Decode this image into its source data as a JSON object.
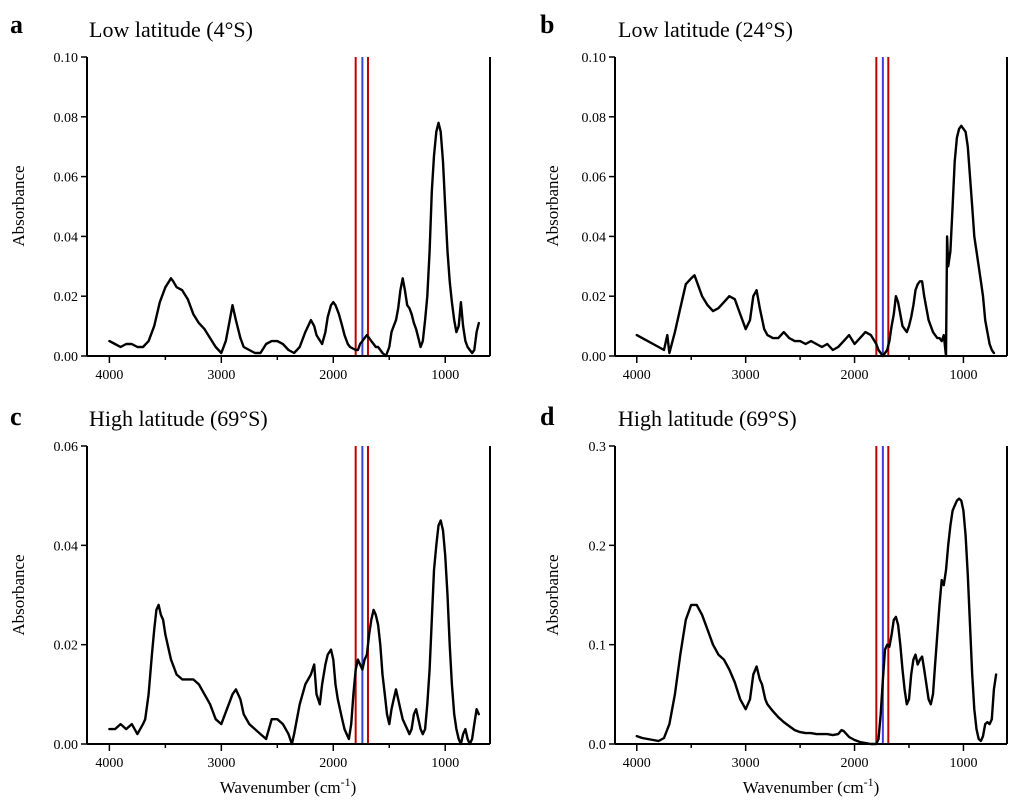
{
  "colors": {
    "red_line": "#c00000",
    "blue_line": "#3f3fd8",
    "trace": "#000000"
  },
  "chart_data": [
    {
      "type": "line",
      "panel_letter": "a",
      "title": "Low latitude (4°S)",
      "xlabel": "",
      "ylabel": "Absorbance",
      "xlim": [
        4200,
        600
      ],
      "ylim": [
        0,
        0.1
      ],
      "xticks": [
        4000,
        3000,
        2000,
        1000
      ],
      "xtick_labels": [
        "4000",
        "3000",
        "2000",
        "1000"
      ],
      "yticks": [
        0,
        0.02,
        0.04,
        0.06,
        0.08,
        0.1
      ],
      "ytick_labels": [
        "0.00",
        "0.02",
        "0.04",
        "0.06",
        "0.08",
        "0.10"
      ],
      "reference_lines": [
        1800,
        1740,
        1690
      ],
      "grid": false,
      "x": [
        4000,
        3950,
        3900,
        3850,
        3800,
        3750,
        3700,
        3650,
        3600,
        3550,
        3500,
        3450,
        3430,
        3400,
        3350,
        3300,
        3250,
        3200,
        3150,
        3100,
        3050,
        3000,
        2960,
        2930,
        2900,
        2870,
        2830,
        2800,
        2750,
        2700,
        2650,
        2600,
        2550,
        2500,
        2450,
        2400,
        2350,
        2300,
        2250,
        2200,
        2170,
        2150,
        2100,
        2070,
        2050,
        2020,
        2000,
        1980,
        1950,
        1920,
        1900,
        1870,
        1850,
        1800,
        1780,
        1760,
        1740,
        1720,
        1700,
        1680,
        1660,
        1640,
        1620,
        1600,
        1580,
        1560,
        1530,
        1500,
        1480,
        1460,
        1440,
        1420,
        1400,
        1380,
        1360,
        1340,
        1320,
        1300,
        1280,
        1260,
        1240,
        1220,
        1200,
        1180,
        1160,
        1140,
        1120,
        1100,
        1080,
        1060,
        1040,
        1020,
        1000,
        980,
        960,
        940,
        920,
        900,
        880,
        860,
        840,
        820,
        800,
        780,
        760,
        740,
        720,
        700
      ],
      "y": [
        0.005,
        0.004,
        0.003,
        0.004,
        0.004,
        0.003,
        0.003,
        0.005,
        0.01,
        0.018,
        0.023,
        0.026,
        0.025,
        0.023,
        0.022,
        0.019,
        0.014,
        0.011,
        0.009,
        0.006,
        0.003,
        0.001,
        0.005,
        0.011,
        0.017,
        0.012,
        0.006,
        0.003,
        0.002,
        0.001,
        0.001,
        0.004,
        0.005,
        0.005,
        0.004,
        0.002,
        0.001,
        0.003,
        0.008,
        0.012,
        0.01,
        0.007,
        0.004,
        0.008,
        0.013,
        0.017,
        0.018,
        0.017,
        0.014,
        0.01,
        0.007,
        0.004,
        0.003,
        0.002,
        0.002,
        0.004,
        0.005,
        0.006,
        0.007,
        0.006,
        0.005,
        0.004,
        0.003,
        0.003,
        0.002,
        0.001,
        0.0,
        0.003,
        0.008,
        0.01,
        0.012,
        0.016,
        0.022,
        0.026,
        0.022,
        0.017,
        0.016,
        0.014,
        0.011,
        0.009,
        0.006,
        0.003,
        0.005,
        0.012,
        0.02,
        0.035,
        0.055,
        0.067,
        0.075,
        0.078,
        0.075,
        0.065,
        0.05,
        0.035,
        0.025,
        0.018,
        0.012,
        0.008,
        0.01,
        0.018,
        0.01,
        0.005,
        0.003,
        0.002,
        0.001,
        0.002,
        0.008,
        0.011
      ]
    },
    {
      "type": "line",
      "panel_letter": "b",
      "title": "Low latitude (24°S)",
      "xlabel": "",
      "ylabel": "Absorbance",
      "xlim": [
        4200,
        600
      ],
      "ylim": [
        0,
        0.1
      ],
      "xticks": [
        4000,
        3000,
        2000,
        1000
      ],
      "xtick_labels": [
        "4000",
        "3000",
        "2000",
        "1000"
      ],
      "yticks": [
        0,
        0.02,
        0.04,
        0.06,
        0.08,
        0.1
      ],
      "ytick_labels": [
        "0.00",
        "0.02",
        "0.04",
        "0.06",
        "0.08",
        "0.10"
      ],
      "reference_lines": [
        1800,
        1740,
        1690
      ],
      "grid": false,
      "x": [
        4000,
        3950,
        3900,
        3850,
        3800,
        3750,
        3720,
        3700,
        3650,
        3600,
        3550,
        3500,
        3470,
        3450,
        3400,
        3350,
        3300,
        3250,
        3200,
        3150,
        3100,
        3050,
        3000,
        2960,
        2930,
        2900,
        2870,
        2830,
        2800,
        2750,
        2700,
        2650,
        2600,
        2550,
        2500,
        2450,
        2400,
        2350,
        2300,
        2250,
        2200,
        2150,
        2100,
        2050,
        2000,
        1950,
        1900,
        1850,
        1800,
        1780,
        1760,
        1740,
        1720,
        1700,
        1680,
        1660,
        1640,
        1620,
        1600,
        1580,
        1560,
        1540,
        1520,
        1500,
        1480,
        1460,
        1440,
        1420,
        1400,
        1380,
        1360,
        1340,
        1320,
        1300,
        1280,
        1260,
        1240,
        1220,
        1200,
        1180,
        1160,
        1150,
        1140,
        1120,
        1100,
        1080,
        1060,
        1040,
        1020,
        1000,
        980,
        960,
        940,
        920,
        900,
        880,
        860,
        840,
        820,
        800,
        780,
        760,
        740,
        720
      ],
      "y": [
        0.007,
        0.006,
        0.005,
        0.004,
        0.003,
        0.002,
        0.007,
        0.001,
        0.008,
        0.016,
        0.024,
        0.026,
        0.027,
        0.025,
        0.02,
        0.017,
        0.015,
        0.016,
        0.018,
        0.02,
        0.019,
        0.014,
        0.009,
        0.012,
        0.02,
        0.022,
        0.016,
        0.009,
        0.007,
        0.006,
        0.006,
        0.008,
        0.006,
        0.005,
        0.005,
        0.004,
        0.005,
        0.004,
        0.003,
        0.004,
        0.002,
        0.003,
        0.005,
        0.007,
        0.004,
        0.006,
        0.008,
        0.007,
        0.004,
        0.002,
        0.001,
        0.0,
        0.001,
        0.002,
        0.005,
        0.01,
        0.014,
        0.02,
        0.018,
        0.014,
        0.01,
        0.009,
        0.008,
        0.01,
        0.013,
        0.017,
        0.022,
        0.024,
        0.025,
        0.025,
        0.02,
        0.016,
        0.012,
        0.01,
        0.008,
        0.007,
        0.006,
        0.006,
        0.005,
        0.007,
        0.0,
        0.04,
        0.03,
        0.035,
        0.05,
        0.065,
        0.073,
        0.076,
        0.077,
        0.076,
        0.075,
        0.07,
        0.06,
        0.05,
        0.04,
        0.035,
        0.03,
        0.025,
        0.02,
        0.012,
        0.008,
        0.004,
        0.002,
        0.001
      ]
    },
    {
      "type": "line",
      "panel_letter": "c",
      "title": "High latitude (69°S)",
      "xlabel": "Wavenumber (cm-1)",
      "ylabel": "Absorbance",
      "xlim": [
        4200,
        600
      ],
      "ylim": [
        0,
        0.06
      ],
      "xticks": [
        4000,
        3000,
        2000,
        1000
      ],
      "xtick_labels": [
        "4000",
        "3000",
        "2000",
        "1000"
      ],
      "yticks": [
        0,
        0.02,
        0.04,
        0.06
      ],
      "ytick_labels": [
        "0.00",
        "0.02",
        "0.04",
        "0.06"
      ],
      "reference_lines": [
        1800,
        1740,
        1690
      ],
      "grid": false,
      "x": [
        4000,
        3950,
        3900,
        3850,
        3800,
        3750,
        3700,
        3680,
        3650,
        3620,
        3600,
        3580,
        3560,
        3540,
        3520,
        3500,
        3450,
        3400,
        3350,
        3300,
        3250,
        3200,
        3150,
        3100,
        3050,
        3000,
        2950,
        2900,
        2870,
        2830,
        2800,
        2750,
        2700,
        2650,
        2600,
        2550,
        2500,
        2450,
        2400,
        2370,
        2350,
        2300,
        2250,
        2200,
        2170,
        2150,
        2120,
        2100,
        2070,
        2050,
        2020,
        2000,
        1980,
        1960,
        1940,
        1920,
        1900,
        1880,
        1860,
        1840,
        1820,
        1800,
        1780,
        1760,
        1740,
        1720,
        1700,
        1680,
        1660,
        1640,
        1620,
        1600,
        1580,
        1560,
        1540,
        1520,
        1500,
        1480,
        1460,
        1440,
        1420,
        1400,
        1380,
        1360,
        1340,
        1320,
        1300,
        1280,
        1260,
        1240,
        1220,
        1200,
        1180,
        1160,
        1140,
        1120,
        1100,
        1080,
        1060,
        1040,
        1020,
        1000,
        980,
        960,
        940,
        920,
        900,
        880,
        860,
        840,
        820,
        800,
        780,
        760,
        740,
        720,
        700
      ],
      "y": [
        0.003,
        0.003,
        0.004,
        0.003,
        0.004,
        0.002,
        0.004,
        0.005,
        0.01,
        0.018,
        0.023,
        0.027,
        0.028,
        0.026,
        0.025,
        0.022,
        0.017,
        0.014,
        0.013,
        0.013,
        0.013,
        0.012,
        0.01,
        0.008,
        0.005,
        0.004,
        0.007,
        0.01,
        0.011,
        0.009,
        0.006,
        0.004,
        0.003,
        0.002,
        0.001,
        0.005,
        0.005,
        0.004,
        0.002,
        0.0,
        0.002,
        0.008,
        0.012,
        0.014,
        0.016,
        0.01,
        0.008,
        0.012,
        0.016,
        0.018,
        0.019,
        0.017,
        0.012,
        0.009,
        0.007,
        0.005,
        0.003,
        0.002,
        0.001,
        0.004,
        0.01,
        0.015,
        0.017,
        0.016,
        0.015,
        0.017,
        0.018,
        0.022,
        0.025,
        0.027,
        0.026,
        0.024,
        0.02,
        0.014,
        0.01,
        0.006,
        0.004,
        0.007,
        0.009,
        0.011,
        0.009,
        0.007,
        0.005,
        0.004,
        0.003,
        0.002,
        0.003,
        0.006,
        0.007,
        0.005,
        0.003,
        0.002,
        0.003,
        0.008,
        0.015,
        0.025,
        0.035,
        0.04,
        0.044,
        0.045,
        0.043,
        0.038,
        0.03,
        0.02,
        0.012,
        0.006,
        0.003,
        0.001,
        0.0,
        0.002,
        0.003,
        0.001,
        0.0,
        0.001,
        0.004,
        0.007,
        0.006
      ]
    },
    {
      "type": "line",
      "panel_letter": "d",
      "title": "High latitude (69°S)",
      "xlabel": "Wavenumber (cm-1)",
      "ylabel": "Absorbance",
      "xlim": [
        4200,
        600
      ],
      "ylim": [
        0,
        0.3
      ],
      "xticks": [
        4000,
        3000,
        2000,
        1000
      ],
      "xtick_labels": [
        "4000",
        "3000",
        "2000",
        "1000"
      ],
      "yticks": [
        0,
        0.1,
        0.2,
        0.3
      ],
      "ytick_labels": [
        "0.0",
        "0.1",
        "0.2",
        "0.3"
      ],
      "reference_lines": [
        1800,
        1740,
        1690
      ],
      "grid": false,
      "x": [
        4000,
        3950,
        3900,
        3850,
        3800,
        3750,
        3700,
        3650,
        3600,
        3550,
        3500,
        3450,
        3400,
        3350,
        3300,
        3250,
        3200,
        3150,
        3100,
        3050,
        3000,
        2960,
        2930,
        2900,
        2870,
        2850,
        2820,
        2800,
        2750,
        2700,
        2650,
        2600,
        2550,
        2500,
        2450,
        2400,
        2350,
        2300,
        2250,
        2200,
        2150,
        2120,
        2100,
        2050,
        2000,
        1950,
        1900,
        1850,
        1800,
        1780,
        1760,
        1740,
        1720,
        1700,
        1680,
        1660,
        1640,
        1620,
        1600,
        1580,
        1560,
        1540,
        1520,
        1500,
        1480,
        1460,
        1440,
        1420,
        1400,
        1380,
        1360,
        1340,
        1320,
        1300,
        1280,
        1260,
        1240,
        1220,
        1200,
        1180,
        1160,
        1140,
        1120,
        1100,
        1080,
        1060,
        1040,
        1020,
        1000,
        980,
        960,
        940,
        920,
        900,
        880,
        860,
        840,
        820,
        800,
        780,
        760,
        740,
        720,
        700
      ],
      "y": [
        0.008,
        0.006,
        0.005,
        0.004,
        0.003,
        0.006,
        0.02,
        0.05,
        0.09,
        0.125,
        0.14,
        0.14,
        0.13,
        0.115,
        0.1,
        0.09,
        0.085,
        0.075,
        0.062,
        0.045,
        0.035,
        0.045,
        0.07,
        0.078,
        0.065,
        0.06,
        0.045,
        0.04,
        0.033,
        0.027,
        0.022,
        0.018,
        0.014,
        0.012,
        0.011,
        0.011,
        0.01,
        0.01,
        0.01,
        0.009,
        0.01,
        0.014,
        0.013,
        0.007,
        0.004,
        0.002,
        0.001,
        0.0,
        0.0,
        0.005,
        0.03,
        0.065,
        0.095,
        0.1,
        0.098,
        0.11,
        0.125,
        0.128,
        0.12,
        0.1,
        0.075,
        0.055,
        0.04,
        0.045,
        0.07,
        0.085,
        0.09,
        0.08,
        0.085,
        0.088,
        0.075,
        0.06,
        0.045,
        0.04,
        0.05,
        0.08,
        0.11,
        0.14,
        0.165,
        0.16,
        0.175,
        0.2,
        0.22,
        0.235,
        0.24,
        0.245,
        0.247,
        0.245,
        0.235,
        0.21,
        0.17,
        0.12,
        0.07,
        0.035,
        0.015,
        0.005,
        0.003,
        0.008,
        0.02,
        0.022,
        0.02,
        0.025,
        0.055,
        0.07
      ]
    }
  ]
}
